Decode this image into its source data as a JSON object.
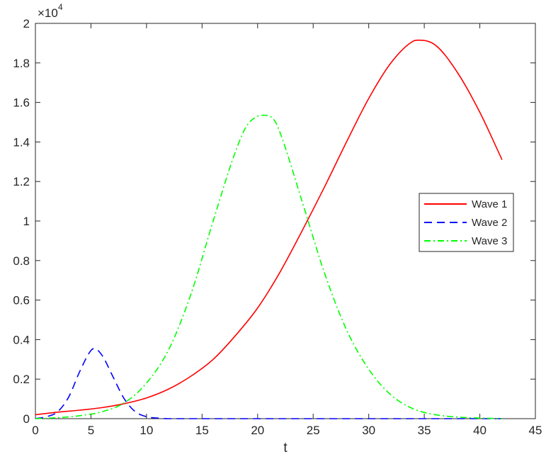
{
  "chart_data": {
    "type": "line",
    "title": "",
    "xlabel": "t",
    "ylabel": "",
    "xlim": [
      0,
      45
    ],
    "ylim": [
      0,
      20000
    ],
    "y_exponent_label": "×10",
    "y_exponent_power": "4",
    "x_ticks": [
      0,
      5,
      10,
      15,
      20,
      25,
      30,
      35,
      40,
      45
    ],
    "x_tick_labels": [
      "0",
      "5",
      "10",
      "15",
      "20",
      "25",
      "30",
      "35",
      "40",
      "45"
    ],
    "y_ticks": [
      0,
      2000,
      4000,
      6000,
      8000,
      10000,
      12000,
      14000,
      16000,
      18000,
      20000
    ],
    "y_tick_labels": [
      "0",
      "0.2",
      "0.4",
      "0.6",
      "0.8",
      "1",
      "1.2",
      "1.4",
      "1.6",
      "1.8",
      "2"
    ],
    "grid": false,
    "legend_position": "right",
    "series": [
      {
        "name": "Wave 1",
        "color": "#ff0000",
        "style": "solid",
        "x": [
          0,
          2,
          4,
          6,
          8,
          10,
          12,
          14,
          16,
          18,
          20,
          22,
          24,
          26,
          28,
          30,
          32,
          34,
          34.5,
          36,
          38,
          40,
          42
        ],
        "y": [
          200,
          330,
          430,
          560,
          760,
          1050,
          1500,
          2150,
          3000,
          4200,
          5600,
          7400,
          9500,
          11700,
          14000,
          16200,
          18000,
          19100,
          19150,
          18900,
          17500,
          15500,
          13100
        ]
      },
      {
        "name": "Wave 2",
        "color": "#0000ff",
        "style": "dashed",
        "x": [
          0,
          1,
          2,
          3,
          4,
          5,
          5.3,
          6,
          7,
          8,
          9,
          10,
          11,
          12,
          14,
          20,
          30,
          42
        ],
        "y": [
          0,
          100,
          350,
          1100,
          2400,
          3450,
          3550,
          3200,
          2100,
          1000,
          350,
          100,
          30,
          0,
          0,
          0,
          0,
          0
        ]
      },
      {
        "name": "Wave 3",
        "color": "#00ff00",
        "style": "dashdot",
        "x": [
          0,
          2,
          4,
          6,
          8,
          10,
          12,
          14,
          16,
          18,
          19,
          20,
          20.7,
          21.5,
          22,
          24,
          26,
          28,
          30,
          32,
          34,
          36,
          38,
          40,
          42
        ],
        "y": [
          0,
          50,
          150,
          350,
          800,
          1800,
          3500,
          6300,
          10000,
          13500,
          14800,
          15300,
          15350,
          15100,
          14500,
          11000,
          7400,
          4500,
          2500,
          1200,
          500,
          200,
          80,
          30,
          0
        ]
      }
    ]
  }
}
